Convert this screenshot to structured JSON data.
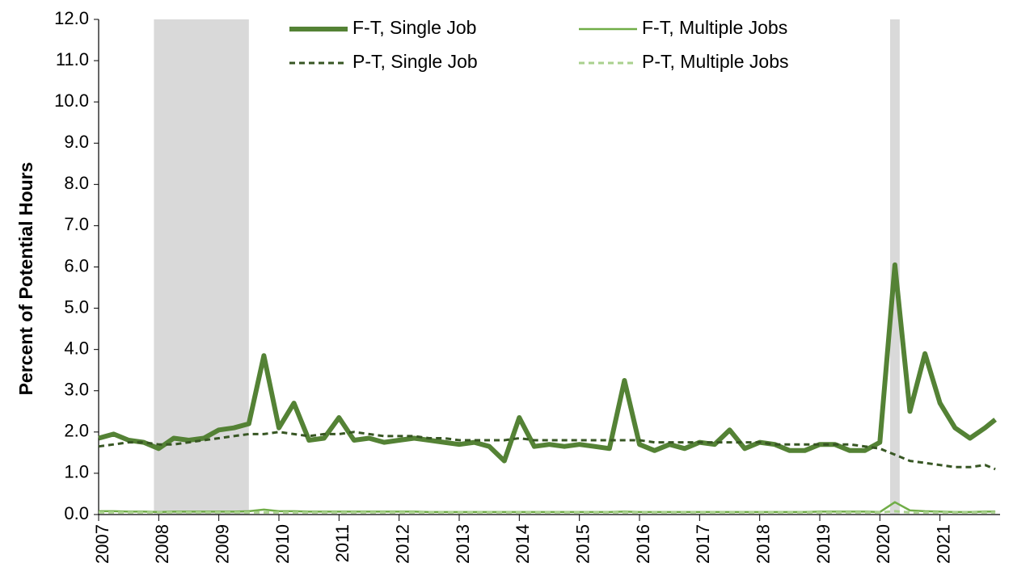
{
  "chart_data": {
    "type": "line",
    "y_label": "Percent of Potential Hours",
    "x": [
      2007,
      2007.25,
      2007.5,
      2007.75,
      2008,
      2008.25,
      2008.5,
      2008.75,
      2009,
      2009.25,
      2009.5,
      2009.75,
      2010,
      2010.25,
      2010.5,
      2010.75,
      2011,
      2011.25,
      2011.5,
      2011.75,
      2012,
      2012.25,
      2012.5,
      2012.75,
      2013,
      2013.25,
      2013.5,
      2013.75,
      2014,
      2014.25,
      2014.5,
      2014.75,
      2015,
      2015.25,
      2015.5,
      2015.75,
      2016,
      2016.25,
      2016.5,
      2016.75,
      2017,
      2017.25,
      2017.5,
      2017.75,
      2018,
      2018.25,
      2018.5,
      2018.75,
      2019,
      2019.25,
      2019.5,
      2019.75,
      2020,
      2020.25,
      2020.5,
      2020.75,
      2021,
      2021.25,
      2021.5,
      2021.75,
      2021.92
    ],
    "series": [
      {
        "name": "F-T, Single Job",
        "color": "#548235",
        "dash": false,
        "width": 6,
        "values": [
          1.85,
          1.95,
          1.8,
          1.75,
          1.6,
          1.85,
          1.8,
          1.85,
          2.05,
          2.1,
          2.2,
          3.85,
          2.1,
          2.7,
          1.8,
          1.85,
          2.35,
          1.8,
          1.85,
          1.75,
          1.8,
          1.85,
          1.8,
          1.75,
          1.7,
          1.75,
          1.65,
          1.3,
          2.35,
          1.65,
          1.7,
          1.65,
          1.7,
          1.65,
          1.6,
          3.25,
          1.7,
          1.55,
          1.7,
          1.6,
          1.75,
          1.7,
          2.05,
          1.6,
          1.75,
          1.7,
          1.55,
          1.55,
          1.7,
          1.7,
          1.55,
          1.55,
          1.75,
          6.05,
          2.5,
          3.9,
          2.7,
          2.1,
          1.85,
          2.1,
          2.3
        ]
      },
      {
        "name": "F-T, Multiple Jobs",
        "color": "#70ad47",
        "dash": false,
        "width": 2.5,
        "values": [
          0.08,
          0.08,
          0.07,
          0.07,
          0.06,
          0.07,
          0.07,
          0.07,
          0.07,
          0.07,
          0.08,
          0.12,
          0.08,
          0.08,
          0.07,
          0.07,
          0.07,
          0.07,
          0.07,
          0.07,
          0.07,
          0.07,
          0.06,
          0.06,
          0.06,
          0.06,
          0.06,
          0.06,
          0.06,
          0.06,
          0.06,
          0.06,
          0.06,
          0.06,
          0.06,
          0.07,
          0.06,
          0.06,
          0.06,
          0.06,
          0.06,
          0.06,
          0.06,
          0.06,
          0.06,
          0.06,
          0.06,
          0.06,
          0.07,
          0.07,
          0.07,
          0.07,
          0.06,
          0.3,
          0.1,
          0.08,
          0.07,
          0.06,
          0.06,
          0.07,
          0.07
        ]
      },
      {
        "name": "P-T, Single Job",
        "color": "#375623",
        "dash": true,
        "width": 3,
        "values": [
          1.65,
          1.7,
          1.75,
          1.75,
          1.7,
          1.7,
          1.75,
          1.8,
          1.85,
          1.9,
          1.95,
          1.95,
          2.0,
          1.95,
          1.9,
          1.95,
          1.95,
          2.0,
          1.95,
          1.9,
          1.9,
          1.9,
          1.85,
          1.85,
          1.8,
          1.8,
          1.8,
          1.8,
          1.85,
          1.8,
          1.8,
          1.8,
          1.8,
          1.8,
          1.8,
          1.8,
          1.8,
          1.75,
          1.75,
          1.75,
          1.75,
          1.75,
          1.75,
          1.75,
          1.75,
          1.7,
          1.7,
          1.7,
          1.7,
          1.7,
          1.7,
          1.65,
          1.6,
          1.45,
          1.3,
          1.25,
          1.2,
          1.15,
          1.15,
          1.2,
          1.1
        ]
      },
      {
        "name": "P-T, Multiple Jobs",
        "color": "#a9d18e",
        "dash": true,
        "width": 3,
        "values": [
          0.05,
          0.05,
          0.05,
          0.05,
          0.05,
          0.05,
          0.05,
          0.05,
          0.05,
          0.05,
          0.05,
          0.05,
          0.05,
          0.05,
          0.05,
          0.05,
          0.05,
          0.05,
          0.05,
          0.05,
          0.05,
          0.05,
          0.05,
          0.05,
          0.05,
          0.05,
          0.05,
          0.05,
          0.05,
          0.05,
          0.05,
          0.05,
          0.05,
          0.05,
          0.05,
          0.05,
          0.05,
          0.05,
          0.05,
          0.05,
          0.05,
          0.05,
          0.05,
          0.05,
          0.05,
          0.05,
          0.05,
          0.05,
          0.05,
          0.05,
          0.05,
          0.05,
          0.05,
          0.08,
          0.05,
          0.05,
          0.05,
          0.05,
          0.05,
          0.05,
          0.05
        ]
      }
    ],
    "recessions": [
      [
        2007.92,
        2009.5
      ],
      [
        2020.17,
        2020.33
      ]
    ],
    "recession_color": "#d9d9d9",
    "xlim": [
      2007,
      2022
    ],
    "xticks": [
      2007,
      2008,
      2009,
      2010,
      2011,
      2012,
      2013,
      2014,
      2015,
      2016,
      2017,
      2018,
      2019,
      2020,
      2021
    ],
    "ylim": [
      0,
      12
    ],
    "yticks": [
      {
        "value": 0,
        "label": "0.0"
      },
      {
        "value": 1,
        "label": "1.0"
      },
      {
        "value": 2,
        "label": "2.0"
      },
      {
        "value": 3,
        "label": "3.0"
      },
      {
        "value": 4,
        "label": "4.0"
      },
      {
        "value": 5,
        "label": "5.0"
      },
      {
        "value": 6,
        "label": "6.0"
      },
      {
        "value": 7,
        "label": "7.0"
      },
      {
        "value": 8,
        "label": "8.0"
      },
      {
        "value": 9,
        "label": "9.0"
      },
      {
        "value": 10,
        "label": "10.0"
      },
      {
        "value": 11,
        "label": "11.0"
      },
      {
        "value": 12,
        "label": "12.0"
      }
    ],
    "legend": "top"
  }
}
